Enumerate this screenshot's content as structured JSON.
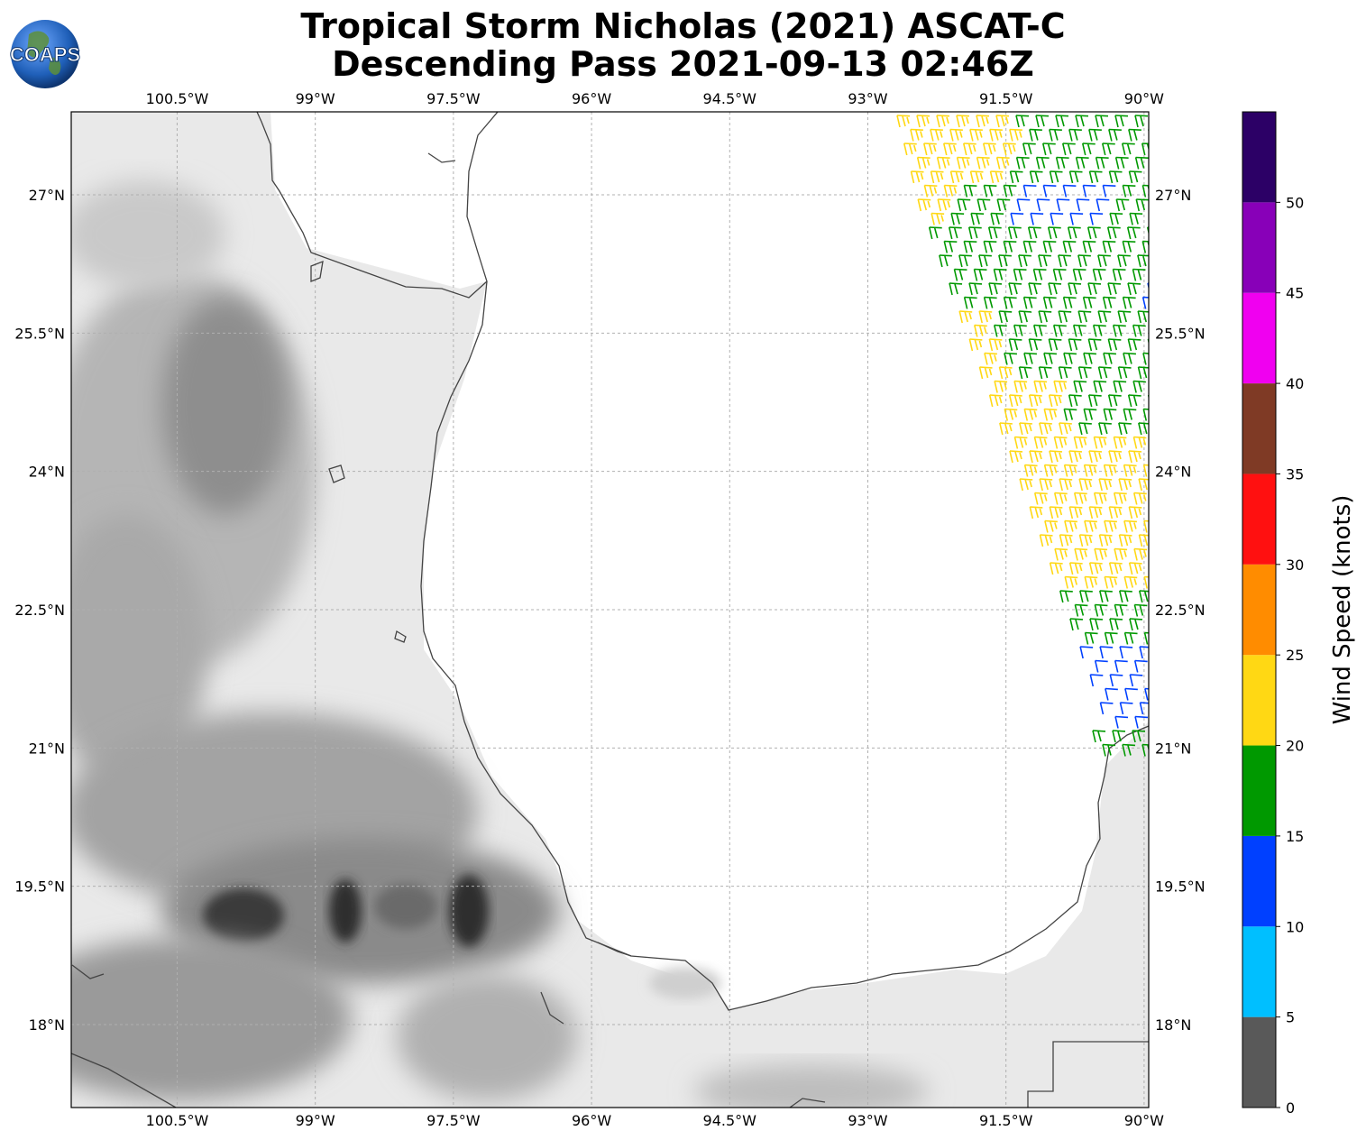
{
  "title": {
    "line1": "Tropical Storm Nicholas (2021) ASCAT-C",
    "line2": "Descending Pass 2021-09-13 02:46Z"
  },
  "logo": {
    "text": "COAPS",
    "icon": "globe-icon"
  },
  "map": {
    "lon_ticks": [
      "100.5°W",
      "99°W",
      "97.5°W",
      "96°W",
      "94.5°W",
      "93°W",
      "91.5°W",
      "90°W"
    ],
    "lon_values": [
      -100.5,
      -99,
      -97.5,
      -96,
      -94.5,
      -93,
      -91.5,
      -90
    ],
    "lat_ticks": [
      "27°N",
      "25.5°N",
      "24°N",
      "22.5°N",
      "21°N",
      "19.5°N",
      "18°N"
    ],
    "lat_values": [
      27,
      25.5,
      24,
      22.5,
      21,
      19.5,
      18
    ],
    "lon_range": [
      -101.65,
      -89.95
    ],
    "lat_range": [
      17.1,
      27.9
    ],
    "background": "grayscale terrain",
    "ocean_color": "#ffffff",
    "coastline_color": "#444444"
  },
  "colorbar": {
    "label": "Wind Speed (knots)",
    "ticks": [
      "0",
      "5",
      "10",
      "15",
      "20",
      "25",
      "30",
      "35",
      "40",
      "45",
      "50"
    ],
    "bins": [
      {
        "from": 0,
        "to": 5,
        "color": "#595959"
      },
      {
        "from": 5,
        "to": 10,
        "color": "#00bfff"
      },
      {
        "from": 10,
        "to": 15,
        "color": "#0040ff"
      },
      {
        "from": 15,
        "to": 20,
        "color": "#009900"
      },
      {
        "from": 20,
        "to": 25,
        "color": "#ffd814"
      },
      {
        "from": 25,
        "to": 30,
        "color": "#ff8c00"
      },
      {
        "from": 30,
        "to": 35,
        "color": "#ff1010"
      },
      {
        "from": 35,
        "to": 40,
        "color": "#7f3a25"
      },
      {
        "from": 40,
        "to": 45,
        "color": "#f000f0"
      },
      {
        "from": 45,
        "to": 50,
        "color": "#8800b8"
      },
      {
        "from": 50,
        "to": 55,
        "color": "#2c0066"
      }
    ]
  }
}
